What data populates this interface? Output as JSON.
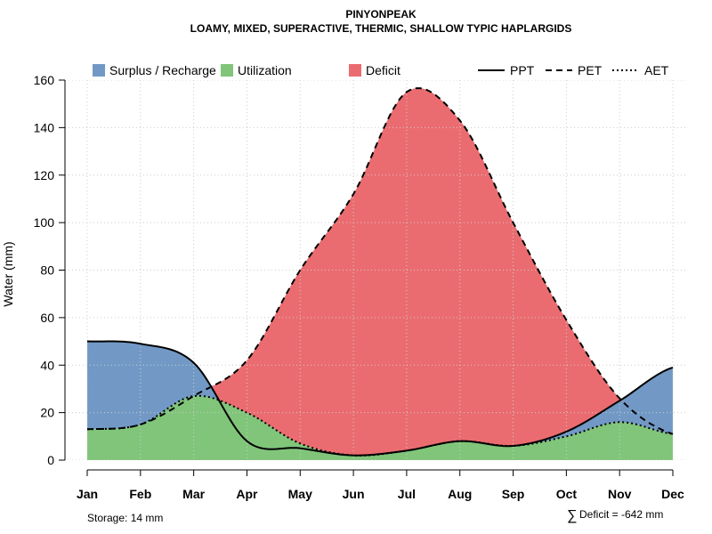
{
  "chart_data": {
    "type": "area",
    "title": "PINYONPEAK",
    "subtitle": "LOAMY, MIXED, SUPERACTIVE, THERMIC, SHALLOW TYPIC HAPLARGIDS",
    "ylabel": "Water (mm)",
    "xlabel": "",
    "ylim": [
      0,
      160
    ],
    "yticks": [
      0,
      20,
      40,
      60,
      80,
      100,
      120,
      140,
      160
    ],
    "categories": [
      "Jan",
      "Feb",
      "Mar",
      "Apr",
      "May",
      "Jun",
      "Jul",
      "Aug",
      "Sep",
      "Oct",
      "Nov",
      "Dec"
    ],
    "grid": true,
    "legend_position": "top",
    "series": [
      {
        "name": "PPT",
        "style": "solid",
        "values": [
          50,
          49,
          41,
          8,
          5,
          2,
          4,
          8,
          6,
          12,
          25,
          39
        ]
      },
      {
        "name": "PET",
        "style": "dashed",
        "values": [
          13,
          15,
          27,
          42,
          80,
          112,
          155,
          143,
          100,
          59,
          26,
          11
        ]
      },
      {
        "name": "AET",
        "style": "dotted",
        "values": [
          13,
          15,
          27,
          20,
          7,
          2,
          4,
          8,
          6,
          10,
          16,
          11
        ]
      }
    ],
    "areas": [
      {
        "name": "Surplus / Recharge",
        "color": "#7299c6"
      },
      {
        "name": "Utilization",
        "color": "#80c57a"
      },
      {
        "name": "Deficit",
        "color": "#eb6c70"
      }
    ]
  },
  "annotations": {
    "storage": "Storage: 14 mm",
    "deficit_symbol": "∑",
    "deficit": "Deficit = -642 mm"
  },
  "colors": {
    "surplus": "#7299c6",
    "utilization": "#80c57a",
    "deficit": "#eb6c70",
    "grid": "#cccccc",
    "line": "#000000"
  }
}
